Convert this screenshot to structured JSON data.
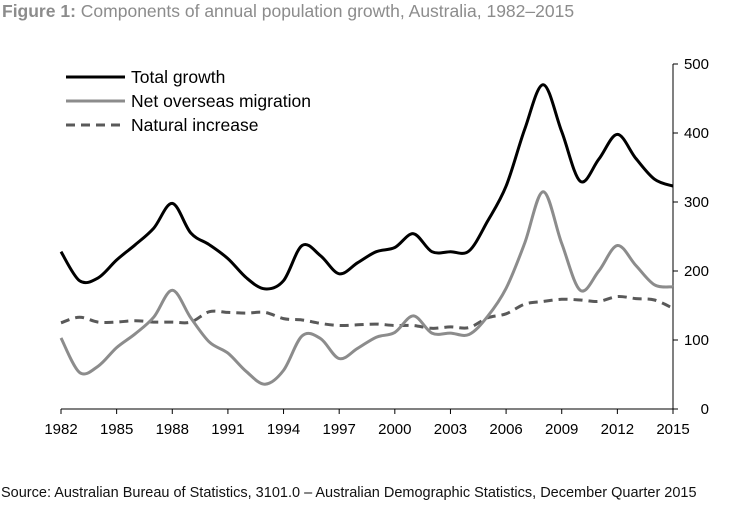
{
  "figure": {
    "label": "Figure 1:",
    "title": "Components of annual population growth, Australia, 1982–2015"
  },
  "chart_data": {
    "type": "line",
    "xlabel": "",
    "ylabel": "",
    "xlim": [
      1982,
      2015
    ],
    "ylim": [
      0,
      500
    ],
    "x_ticks": [
      "1982",
      "1985",
      "1988",
      "1991",
      "1994",
      "1997",
      "2000",
      "2003",
      "2006",
      "2009",
      "2012",
      "2015"
    ],
    "y_ticks": [
      "0",
      "100",
      "200",
      "300",
      "400",
      "500"
    ],
    "y_axis_side": "right",
    "grid": false,
    "legend_position": "top-left",
    "series": [
      {
        "name": "Total growth",
        "color": "#000000",
        "style": "solid",
        "x": [
          1982,
          1983,
          1984,
          1985,
          1986,
          1987,
          1988,
          1989,
          1990,
          1991,
          1992,
          1993,
          1994,
          1995,
          1996,
          1997,
          1998,
          1999,
          2000,
          2001,
          2002,
          2003,
          2004,
          2005,
          2006,
          2007,
          2008,
          2009,
          2010,
          2011,
          2012,
          2013,
          2014,
          2015
        ],
        "values": [
          228,
          186,
          190,
          216,
          238,
          262,
          298,
          255,
          238,
          218,
          190,
          174,
          186,
          237,
          222,
          196,
          212,
          228,
          234,
          254,
          228,
          228,
          229,
          272,
          323,
          405,
          470,
          402,
          330,
          362,
          398,
          363,
          333,
          323
        ]
      },
      {
        "name": "Net overseas migration",
        "color": "#8c8c8c",
        "style": "solid",
        "x": [
          1982,
          1983,
          1984,
          1985,
          1986,
          1987,
          1988,
          1989,
          1990,
          1991,
          1992,
          1993,
          1994,
          1995,
          1996,
          1997,
          1998,
          1999,
          2000,
          2001,
          2002,
          2003,
          2004,
          2005,
          2006,
          2007,
          2008,
          2009,
          2010,
          2011,
          2012,
          2013,
          2014,
          2015
        ],
        "values": [
          103,
          53,
          62,
          89,
          109,
          133,
          172,
          132,
          97,
          81,
          54,
          36,
          56,
          106,
          102,
          73,
          88,
          104,
          111,
          135,
          110,
          110,
          108,
          134,
          175,
          240,
          315,
          240,
          172,
          200,
          237,
          208,
          180,
          177
        ]
      },
      {
        "name": "Natural increase",
        "color": "#595959",
        "style": "dashed",
        "x": [
          1982,
          1983,
          1984,
          1985,
          1986,
          1987,
          1988,
          1989,
          1990,
          1991,
          1992,
          1993,
          1994,
          1995,
          1996,
          1997,
          1998,
          1999,
          2000,
          2001,
          2002,
          2003,
          2004,
          2005,
          2006,
          2007,
          2008,
          2009,
          2010,
          2011,
          2012,
          2013,
          2014,
          2015
        ],
        "values": [
          125,
          133,
          126,
          126,
          128,
          126,
          126,
          126,
          141,
          140,
          139,
          140,
          131,
          129,
          124,
          121,
          122,
          123,
          121,
          121,
          117,
          119,
          118,
          132,
          138,
          152,
          156,
          159,
          158,
          156,
          163,
          160,
          158,
          146
        ]
      }
    ]
  },
  "source_note": "Source: Australian Bureau of Statistics, 3101.0 – Australian Demographic Statistics, December Quarter 2015"
}
